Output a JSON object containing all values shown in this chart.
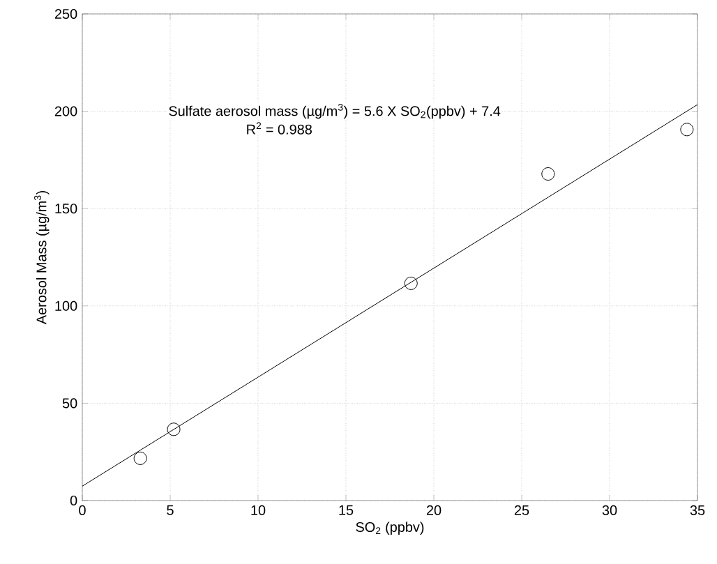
{
  "chart_data": {
    "type": "scatter",
    "xlabel": "SO$_{2}$ (ppbv)",
    "ylabel": "Aerosol Mass (µg/m$^{3}$)",
    "annotations": [
      "Sulfate aerosol mass (µg/m$^{3}$) = 5.6 X SO$_{2}$(ppbv) + 7.4",
      "R$^{2}$ = 0.988"
    ],
    "series": [
      {
        "color": "#000000",
        "marker": "circle",
        "x": [
          3.3,
          5.2,
          18.7,
          26.5,
          34.4
        ],
        "values": [
          21.7,
          36.6,
          111.6,
          167.8,
          190.6
        ]
      },
      {
        "type": "line",
        "color": "#000000",
        "marker": "none",
        "x": [
          0,
          35
        ],
        "values": [
          7.4,
          203.4
        ]
      }
    ],
    "xlim": [
      0,
      35
    ],
    "ylim": [
      0,
      250
    ],
    "xticks": [
      0,
      5,
      10,
      15,
      20,
      25,
      30,
      35
    ],
    "yticks": [
      0,
      50,
      100,
      150,
      200,
      250
    ],
    "grid": true
  }
}
